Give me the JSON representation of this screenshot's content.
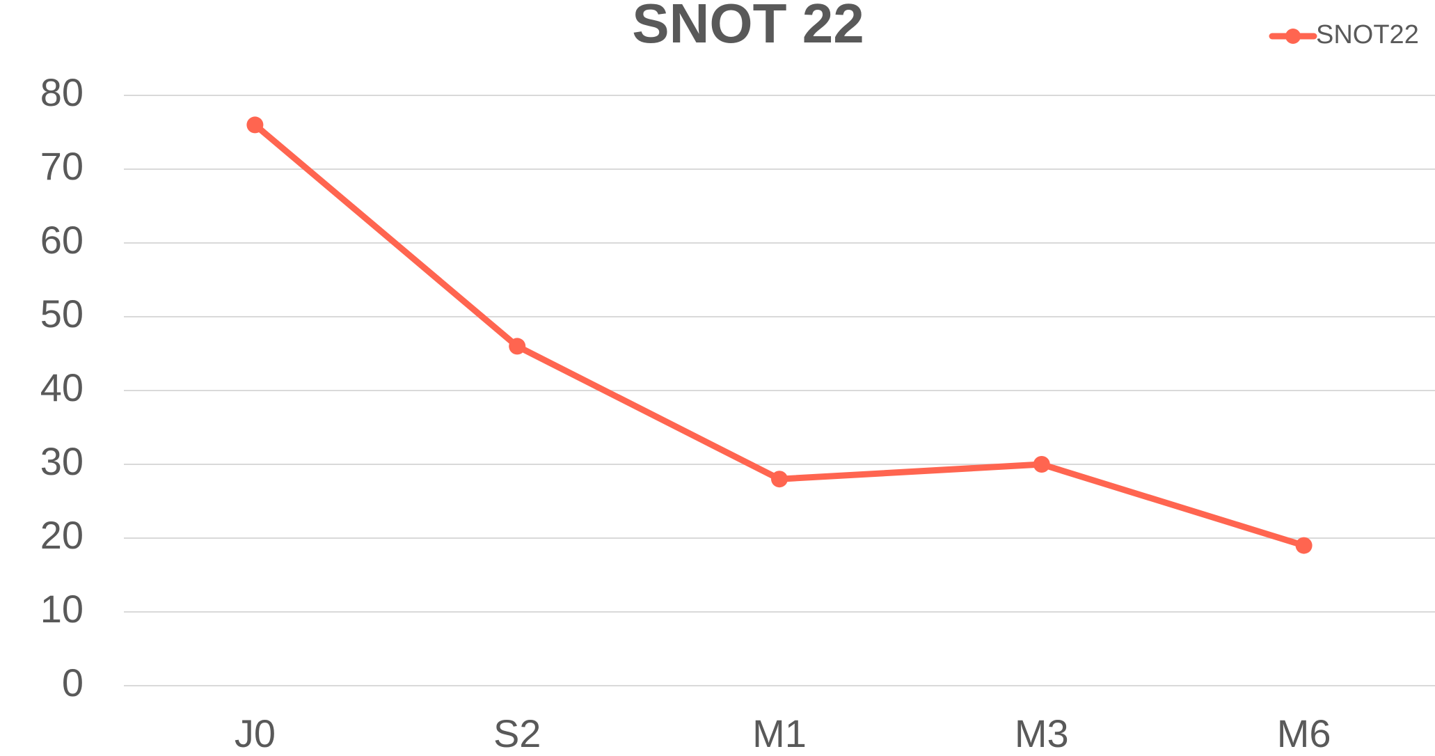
{
  "chart_data": {
    "type": "line",
    "title": "SNOT 22",
    "categories": [
      "J0",
      "S2",
      "M1",
      "M3",
      "M6"
    ],
    "series": [
      {
        "name": "SNOT22",
        "color": "#ff6550",
        "values": [
          76,
          46,
          28,
          30,
          19
        ]
      }
    ],
    "ylim": [
      0,
      80
    ],
    "yticks": [
      0,
      10,
      20,
      30,
      40,
      50,
      60,
      70,
      80
    ],
    "grid": true,
    "legend": "top-right"
  }
}
